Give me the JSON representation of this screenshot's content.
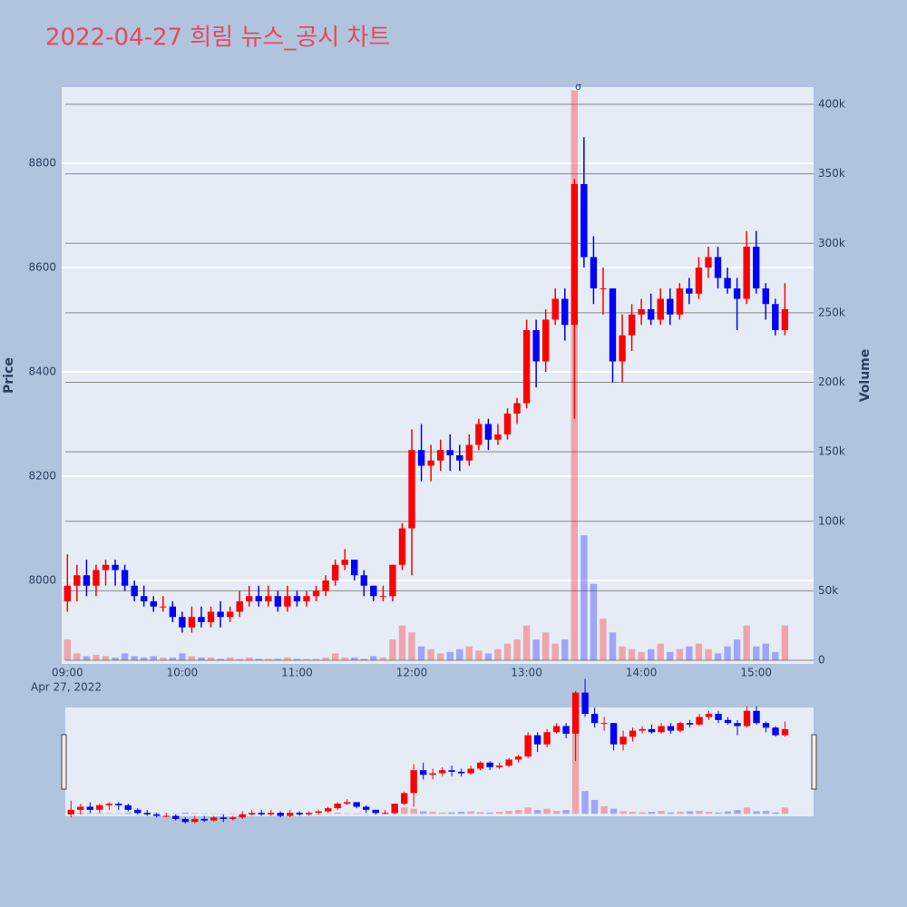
{
  "chart_data": {
    "type": "candlestick",
    "title": "2022-04-27 희림 뉴스_공시 차트",
    "x": [
      "2022-04-27 09:00",
      "2022-04-27 09:05",
      "2022-04-27 09:10",
      "2022-04-27 09:15",
      "2022-04-27 09:20",
      "2022-04-27 09:25",
      "2022-04-27 09:30",
      "2022-04-27 09:35",
      "2022-04-27 09:40",
      "2022-04-27 09:45",
      "2022-04-27 09:50",
      "2022-04-27 09:55",
      "2022-04-27 10:00",
      "2022-04-27 10:05",
      "2022-04-27 10:10",
      "2022-04-27 10:15",
      "2022-04-27 10:20",
      "2022-04-27 10:25",
      "2022-04-27 10:30",
      "2022-04-27 10:35",
      "2022-04-27 10:40",
      "2022-04-27 10:45",
      "2022-04-27 10:50",
      "2022-04-27 10:55",
      "2022-04-27 11:00",
      "2022-04-27 11:05",
      "2022-04-27 11:10",
      "2022-04-27 11:15",
      "2022-04-27 11:20",
      "2022-04-27 11:25",
      "2022-04-27 11:30",
      "2022-04-27 11:35",
      "2022-04-27 11:40",
      "2022-04-27 11:45",
      "2022-04-27 11:50",
      "2022-04-27 11:55",
      "2022-04-27 12:00",
      "2022-04-27 12:05",
      "2022-04-27 12:10",
      "2022-04-27 12:15",
      "2022-04-27 12:20",
      "2022-04-27 12:25",
      "2022-04-27 12:30",
      "2022-04-27 12:35",
      "2022-04-27 12:40",
      "2022-04-27 12:45",
      "2022-04-27 12:50",
      "2022-04-27 12:55",
      "2022-04-27 13:00",
      "2022-04-27 13:05",
      "2022-04-27 13:10",
      "2022-04-27 13:15",
      "2022-04-27 13:20",
      "2022-04-27 13:25",
      "2022-04-27 13:30",
      "2022-04-27 13:35",
      "2022-04-27 13:40",
      "2022-04-27 13:45",
      "2022-04-27 13:50",
      "2022-04-27 13:55",
      "2022-04-27 14:00",
      "2022-04-27 14:05",
      "2022-04-27 14:10",
      "2022-04-27 14:15",
      "2022-04-27 14:20",
      "2022-04-27 14:25",
      "2022-04-27 14:30",
      "2022-04-27 14:35",
      "2022-04-27 14:40",
      "2022-04-27 14:45",
      "2022-04-27 14:50",
      "2022-04-27 14:55",
      "2022-04-27 15:00",
      "2022-04-27 15:05",
      "2022-04-27 15:10",
      "2022-04-27 15:15"
    ],
    "open": [
      7960,
      7990,
      8010,
      7990,
      8020,
      8030,
      8020,
      7990,
      7970,
      7960,
      7950,
      7950,
      7930,
      7910,
      7930,
      7920,
      7940,
      7930,
      7940,
      7960,
      7970,
      7960,
      7970,
      7950,
      7970,
      7960,
      7970,
      7980,
      8000,
      8030,
      8040,
      8010,
      7990,
      7970,
      7970,
      8030,
      8100,
      8250,
      8220,
      8230,
      8250,
      8240,
      8230,
      8260,
      8300,
      8270,
      8280,
      8320,
      8340,
      8480,
      8420,
      8500,
      8540,
      8490,
      8760,
      8620,
      8560,
      8560,
      8420,
      8470,
      8510,
      8520,
      8500,
      8540,
      8510,
      8560,
      8550,
      8600,
      8620,
      8580,
      8560,
      8540,
      8640,
      8560,
      8530,
      8480
    ],
    "high": [
      8050,
      8030,
      8040,
      8030,
      8040,
      8040,
      8030,
      8000,
      7990,
      7970,
      7970,
      7960,
      7940,
      7950,
      7950,
      7950,
      7960,
      7950,
      7980,
      7990,
      7990,
      7990,
      7980,
      7990,
      7980,
      7980,
      7990,
      8010,
      8040,
      8060,
      8040,
      8020,
      7990,
      7990,
      8030,
      8110,
      8290,
      8300,
      8260,
      8270,
      8280,
      8260,
      8280,
      8310,
      8310,
      8300,
      8330,
      8350,
      8500,
      8500,
      8520,
      8560,
      8560,
      8770,
      8850,
      8660,
      8600,
      8560,
      8510,
      8530,
      8540,
      8550,
      8560,
      8560,
      8570,
      8580,
      8620,
      8640,
      8640,
      8600,
      8580,
      8670,
      8670,
      8570,
      8540,
      8570
    ],
    "low": [
      7940,
      7960,
      7970,
      7970,
      7990,
      7990,
      7980,
      7960,
      7950,
      7940,
      7940,
      7920,
      7900,
      7900,
      7910,
      7910,
      7910,
      7920,
      7930,
      7950,
      7950,
      7950,
      7940,
      7940,
      7950,
      7950,
      7960,
      7970,
      7990,
      8020,
      8000,
      7970,
      7960,
      7960,
      7960,
      8020,
      8010,
      8190,
      8190,
      8210,
      8210,
      8210,
      8220,
      8250,
      8250,
      8260,
      8270,
      8300,
      8330,
      8370,
      8400,
      8490,
      8460,
      8310,
      8600,
      8530,
      8510,
      8380,
      8380,
      8440,
      8490,
      8490,
      8490,
      8490,
      8500,
      8530,
      8540,
      8580,
      8560,
      8550,
      8480,
      8530,
      8550,
      8500,
      8470,
      8470
    ],
    "close": [
      7990,
      8010,
      7990,
      8020,
      8030,
      8020,
      7990,
      7970,
      7960,
      7950,
      7950,
      7930,
      7910,
      7930,
      7920,
      7940,
      7930,
      7940,
      7960,
      7970,
      7960,
      7970,
      7950,
      7970,
      7960,
      7970,
      7980,
      8000,
      8030,
      8040,
      8010,
      7990,
      7970,
      7970,
      8030,
      8100,
      8250,
      8220,
      8230,
      8250,
      8240,
      8230,
      8260,
      8300,
      8270,
      8280,
      8320,
      8340,
      8480,
      8420,
      8500,
      8540,
      8490,
      8760,
      8620,
      8560,
      8560,
      8420,
      8470,
      8510,
      8520,
      8500,
      8540,
      8510,
      8560,
      8550,
      8600,
      8620,
      8580,
      8560,
      8540,
      8640,
      8560,
      8530,
      8480,
      8520
    ],
    "volume": [
      15000,
      5000,
      3000,
      4000,
      3000,
      2000,
      5000,
      3000,
      2000,
      3000,
      2000,
      2000,
      5000,
      3000,
      2000,
      2000,
      1000,
      2000,
      1000,
      2000,
      1000,
      1000,
      1000,
      2000,
      1000,
      1000,
      1000,
      2000,
      5000,
      2000,
      2000,
      1000,
      3000,
      2000,
      15000,
      25000,
      20000,
      10000,
      8000,
      5000,
      6000,
      8000,
      10000,
      7000,
      5000,
      8000,
      12000,
      15000,
      25000,
      15000,
      20000,
      12000,
      15000,
      410000,
      90000,
      55000,
      30000,
      20000,
      10000,
      8000,
      6000,
      8000,
      12000,
      6000,
      8000,
      10000,
      12000,
      8000,
      5000,
      10000,
      15000,
      25000,
      10000,
      12000,
      6000,
      25000
    ],
    "increasing_color": "#ff0000",
    "decreasing_color": "#0000ff",
    "xlim": [
      "2022-04-27 08:57",
      "2022-04-27 15:30"
    ],
    "xticks": [
      {
        "value": "2022-04-27 09:00",
        "label": "09:00"
      },
      {
        "value": "2022-04-27 10:00",
        "label": "10:00"
      },
      {
        "value": "2022-04-27 11:00",
        "label": "11:00"
      },
      {
        "value": "2022-04-27 12:00",
        "label": "12:00"
      },
      {
        "value": "2022-04-27 13:00",
        "label": "13:00"
      },
      {
        "value": "2022-04-27 14:00",
        "label": "14:00"
      },
      {
        "value": "2022-04-27 15:00",
        "label": "15:00"
      }
    ],
    "x_date_label": "Apr 27, 2022",
    "ylabel": "Price",
    "y2label": "Volume",
    "ylim": [
      7840,
      8946
    ],
    "yticks": [
      8000,
      8200,
      8400,
      8600,
      8800
    ],
    "y2lim": [
      -2600,
      412400
    ],
    "y2ticks": [
      0,
      {
        "value": 50000,
        "label": "50k"
      },
      {
        "value": 100000,
        "label": "100k"
      },
      {
        "value": 150000,
        "label": "150k"
      },
      {
        "value": 200000,
        "label": "200k"
      },
      {
        "value": 250000,
        "label": "250k"
      },
      {
        "value": 300000,
        "label": "300k"
      },
      {
        "value": 350000,
        "label": "350k"
      },
      {
        "value": 400000,
        "label": "400k"
      }
    ],
    "annotation": {
      "x": "2022-04-27 13:27",
      "text": "σ"
    },
    "grid": true
  }
}
